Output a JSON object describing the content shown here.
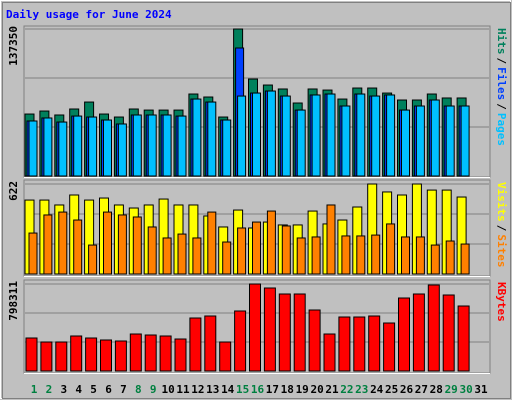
{
  "chart_data": [
    {
      "type": "bar",
      "title": "Daily usage for June 2024",
      "categories": [
        "1",
        "2",
        "3",
        "4",
        "5",
        "6",
        "7",
        "8",
        "9",
        "10",
        "11",
        "12",
        "13",
        "14",
        "15",
        "16",
        "17",
        "18",
        "19",
        "20",
        "21",
        "22",
        "23",
        "24",
        "25",
        "26",
        "27",
        "28",
        "29",
        "30",
        "31"
      ],
      "category_colors": [
        "#008040",
        "#008040",
        "#000000",
        "#000000",
        "#000000",
        "#000000",
        "#000000",
        "#008040",
        "#008040",
        "#000000",
        "#000000",
        "#000000",
        "#000000",
        "#000000",
        "#008040",
        "#008040",
        "#000000",
        "#000000",
        "#000000",
        "#000000",
        "#000000",
        "#008040",
        "#008040",
        "#000000",
        "#000000",
        "#000000",
        "#000000",
        "#000000",
        "#008040",
        "#008040",
        "#000000"
      ],
      "ylim": [
        0,
        137350
      ],
      "yticks": [
        137350
      ],
      "legend_separator": "/",
      "series": [
        {
          "name": "Hits",
          "color": "#00805c",
          "values": [
            57900,
            60700,
            57000,
            62600,
            69100,
            57900,
            55100,
            62600,
            61600,
            61600,
            61600,
            76600,
            73800,
            55100,
            137350,
            90600,
            85000,
            81300,
            68200,
            81300,
            80300,
            71900,
            82200,
            82200,
            77500,
            71000,
            71000,
            76600,
            72900,
            72900,
            null
          ]
        },
        {
          "name": "Files",
          "color": "#0040ff",
          "values": [
            51400,
            54200,
            50400,
            56000,
            55100,
            52300,
            48600,
            57000,
            57000,
            57000,
            56000,
            71900,
            69100,
            52300,
            119600,
            77500,
            79400,
            74700,
            61600,
            75700,
            76600,
            65400,
            76600,
            74700,
            75700,
            61600,
            65400,
            71000,
            65400,
            65400,
            null
          ]
        },
        {
          "name": "Pages",
          "color": "#00c0ff",
          "values": [
            51400,
            54200,
            50400,
            56000,
            55100,
            52300,
            48600,
            57000,
            57000,
            57000,
            56000,
            71900,
            69100,
            52300,
            74700,
            77500,
            79400,
            74700,
            61600,
            75700,
            76600,
            65400,
            76600,
            74700,
            75700,
            61600,
            65400,
            71000,
            65400,
            65400,
            null
          ]
        }
      ]
    },
    {
      "type": "bar",
      "ylim": [
        0,
        622
      ],
      "yticks": [
        622
      ],
      "legend_separator": "/",
      "series": [
        {
          "name": "Visits",
          "color": "#ffff00",
          "values": [
            511,
            511,
            477,
            546,
            511,
            525,
            477,
            456,
            477,
            518,
            477,
            477,
            401,
            325,
            442,
            318,
            359,
            339,
            339,
            435,
            346,
            373,
            463,
            622,
            567,
            546,
            622,
            580,
            580,
            532,
            null
          ]
        },
        {
          "name": "Sites",
          "color": "#ff8000",
          "values": [
            283,
            408,
            428,
            373,
            200,
            428,
            408,
            394,
            325,
            249,
            276,
            249,
            428,
            221,
            318,
            359,
            435,
            332,
            249,
            256,
            477,
            263,
            263,
            269,
            346,
            256,
            256,
            200,
            228,
            207,
            null
          ]
        }
      ]
    },
    {
      "type": "bar",
      "ylim": [
        0,
        798311
      ],
      "yticks": [
        798311
      ],
      "series": [
        {
          "name": "KBytes",
          "color": "#ff0000",
          "values": [
            302800,
            266100,
            266100,
            321200,
            302800,
            284500,
            275300,
            339500,
            330300,
            321200,
            293600,
            486300,
            504700,
            266100,
            550600,
            798311,
            761600,
            706600,
            706600,
            559700,
            339500,
            495500,
            495500,
            504700,
            440400,
            669800,
            706600,
            789100,
            697400,
            596400,
            null
          ]
        }
      ]
    }
  ]
}
